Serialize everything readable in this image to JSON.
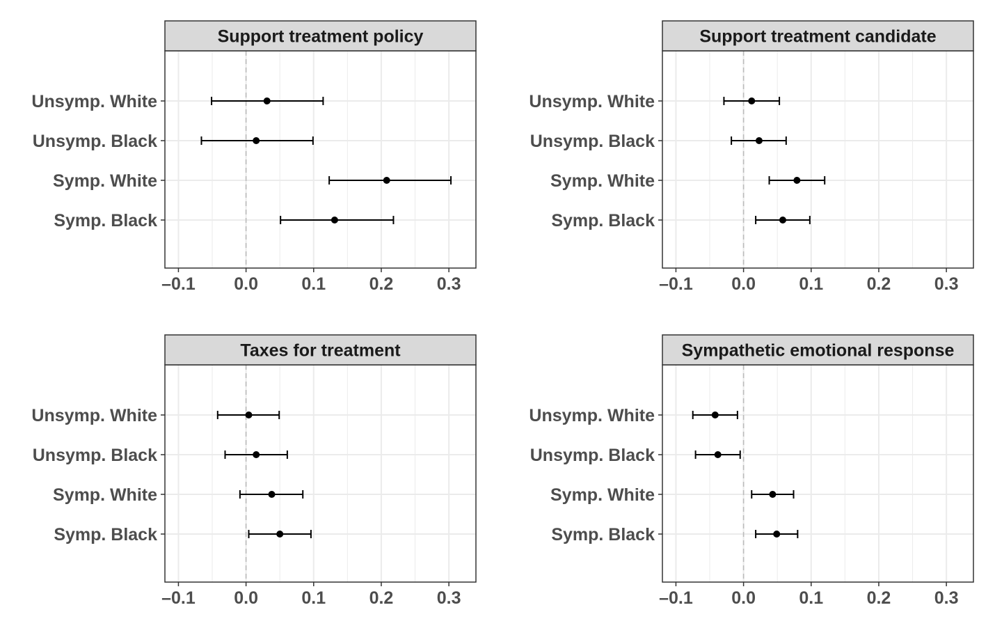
{
  "colors": {
    "strip_fill": "#d9d9d9",
    "panel_border": "#333333",
    "grid": "#ebebeb",
    "zero_line": "#bbbbbb",
    "point": "#000000",
    "label_text": "#4d4d4d",
    "title_text": "#1a1a1a"
  },
  "chart_data": [
    {
      "type": "scatter",
      "title": "Support treatment policy",
      "categories": [
        "Unsymp. White",
        "Unsymp. Black",
        "Symp. White",
        "Symp. Black"
      ],
      "estimates": [
        0.031,
        0.015,
        0.208,
        0.131
      ],
      "ci_low": [
        -0.051,
        -0.066,
        0.123,
        0.051
      ],
      "ci_high": [
        0.114,
        0.099,
        0.303,
        0.218
      ],
      "xlim": [
        -0.12,
        0.34
      ],
      "xticks": [
        -0.1,
        0.0,
        0.1,
        0.2,
        0.3
      ],
      "xtick_labels": [
        "–0.1",
        "0.0",
        "0.1",
        "0.2",
        "0.3"
      ],
      "reference_line": 0,
      "grid": true
    },
    {
      "type": "scatter",
      "title": "Support treatment candidate",
      "categories": [
        "Unsymp. White",
        "Unsymp. Black",
        "Symp. White",
        "Symp. Black"
      ],
      "estimates": [
        0.012,
        0.023,
        0.079,
        0.058
      ],
      "ci_low": [
        -0.029,
        -0.018,
        0.038,
        0.018
      ],
      "ci_high": [
        0.053,
        0.063,
        0.12,
        0.098
      ],
      "xlim": [
        -0.12,
        0.34
      ],
      "xticks": [
        -0.1,
        0.0,
        0.1,
        0.2,
        0.3
      ],
      "xtick_labels": [
        "–0.1",
        "0.0",
        "0.1",
        "0.2",
        "0.3"
      ],
      "reference_line": 0,
      "grid": true
    },
    {
      "type": "scatter",
      "title": "Taxes for treatment",
      "categories": [
        "Unsymp. White",
        "Unsymp. Black",
        "Symp. White",
        "Symp. Black"
      ],
      "estimates": [
        0.004,
        0.015,
        0.038,
        0.05
      ],
      "ci_low": [
        -0.042,
        -0.031,
        -0.009,
        0.004
      ],
      "ci_high": [
        0.049,
        0.061,
        0.084,
        0.096
      ],
      "xlim": [
        -0.12,
        0.34
      ],
      "xticks": [
        -0.1,
        0.0,
        0.1,
        0.2,
        0.3
      ],
      "xtick_labels": [
        "–0.1",
        "0.0",
        "0.1",
        "0.2",
        "0.3"
      ],
      "reference_line": 0,
      "grid": true
    },
    {
      "type": "scatter",
      "title": "Sympathetic emotional response",
      "categories": [
        "Unsymp. White",
        "Unsymp. Black",
        "Symp. White",
        "Symp. Black"
      ],
      "estimates": [
        -0.042,
        -0.038,
        0.043,
        0.049
      ],
      "ci_low": [
        -0.075,
        -0.071,
        0.012,
        0.018
      ],
      "ci_high": [
        -0.009,
        -0.005,
        0.074,
        0.08
      ],
      "xlim": [
        -0.12,
        0.34
      ],
      "xticks": [
        -0.1,
        0.0,
        0.1,
        0.2,
        0.3
      ],
      "xtick_labels": [
        "–0.1",
        "0.0",
        "0.1",
        "0.2",
        "0.3"
      ],
      "reference_line": 0,
      "grid": true
    }
  ]
}
